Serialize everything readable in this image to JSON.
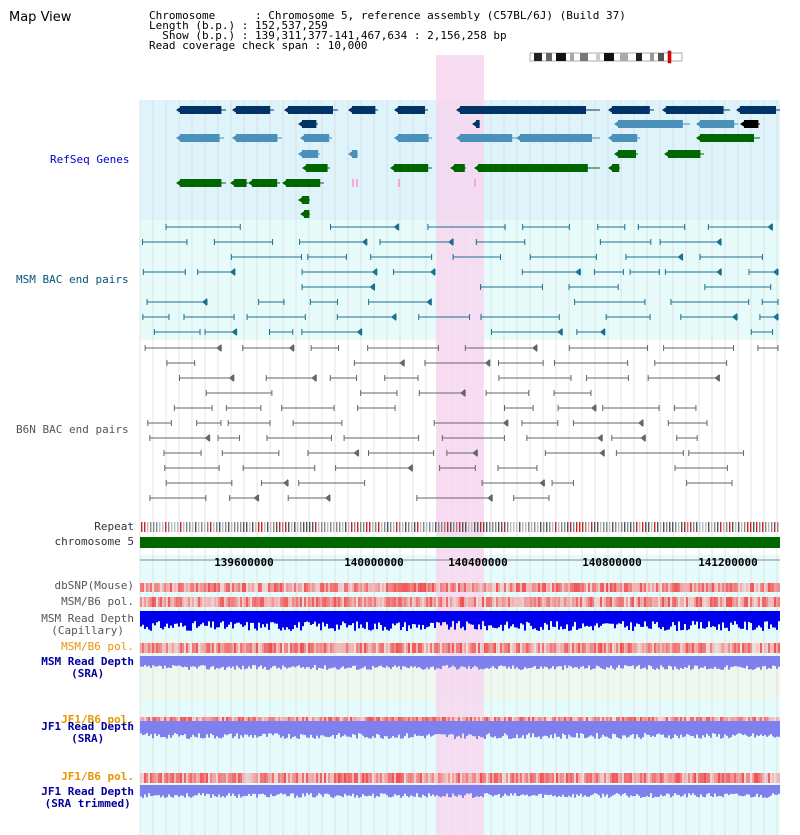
{
  "title": "Map View",
  "info": {
    "line1": "Chromosome      : Chromosome 5, reference assembly (C57BL/6J) (Build 37)",
    "line2": "Length (b.p.) : 152,537,259",
    "line3": "  Show (b.p.) : 139,311,377-141,467,634 : 2,156,258 bp",
    "line4": "Read coverage check span : 10,000"
  },
  "tracks": {
    "refseq": "RefSeq Genes",
    "msm_bac": "MSM BAC end pairs",
    "b6n_bac": "B6N BAC end pairs",
    "repeat": "Repeat",
    "chromosome": "chromosome 5",
    "dbsnp": "dbSNP(Mouse)",
    "msm_b6_pol_1": "MSM/B6 pol.",
    "msm_depth_cap_1": "MSM Read Depth",
    "msm_depth_cap_2": "(Capillary)",
    "msm_b6_pol_2": "MSM/B6 pol.",
    "msm_depth_sra_1": "MSM Read Depth",
    "msm_depth_sra_2": "(SRA)",
    "jf1_b6_pol_1": "JF1/B6 pol.",
    "jf1_depth_sra_1": "JF1 Read Depth",
    "jf1_depth_sra_2": "(SRA)",
    "jf1_b6_pol_2": "JF1/B6 pol.",
    "jf1_depth_trim_1": "JF1 Read Depth",
    "jf1_depth_trim_2": "(SRA trimmed)"
  },
  "ruler": {
    "ticks": [
      "139600000",
      "140000000",
      "140400000",
      "140800000",
      "141200000"
    ]
  },
  "colors": {
    "refseq_bg": "#dff3fb",
    "msm_bac_bg": "#e8fbfb",
    "highlight": "#f7d7f0",
    "gene_dark": "#003366",
    "gene_mid": "#4a90b8",
    "gene_green": "#006600",
    "chromosome_bar": "#006600",
    "snp": "#f07a7a",
    "depth_dark": "#0000ee",
    "depth_light": "#7f7fee"
  }
}
